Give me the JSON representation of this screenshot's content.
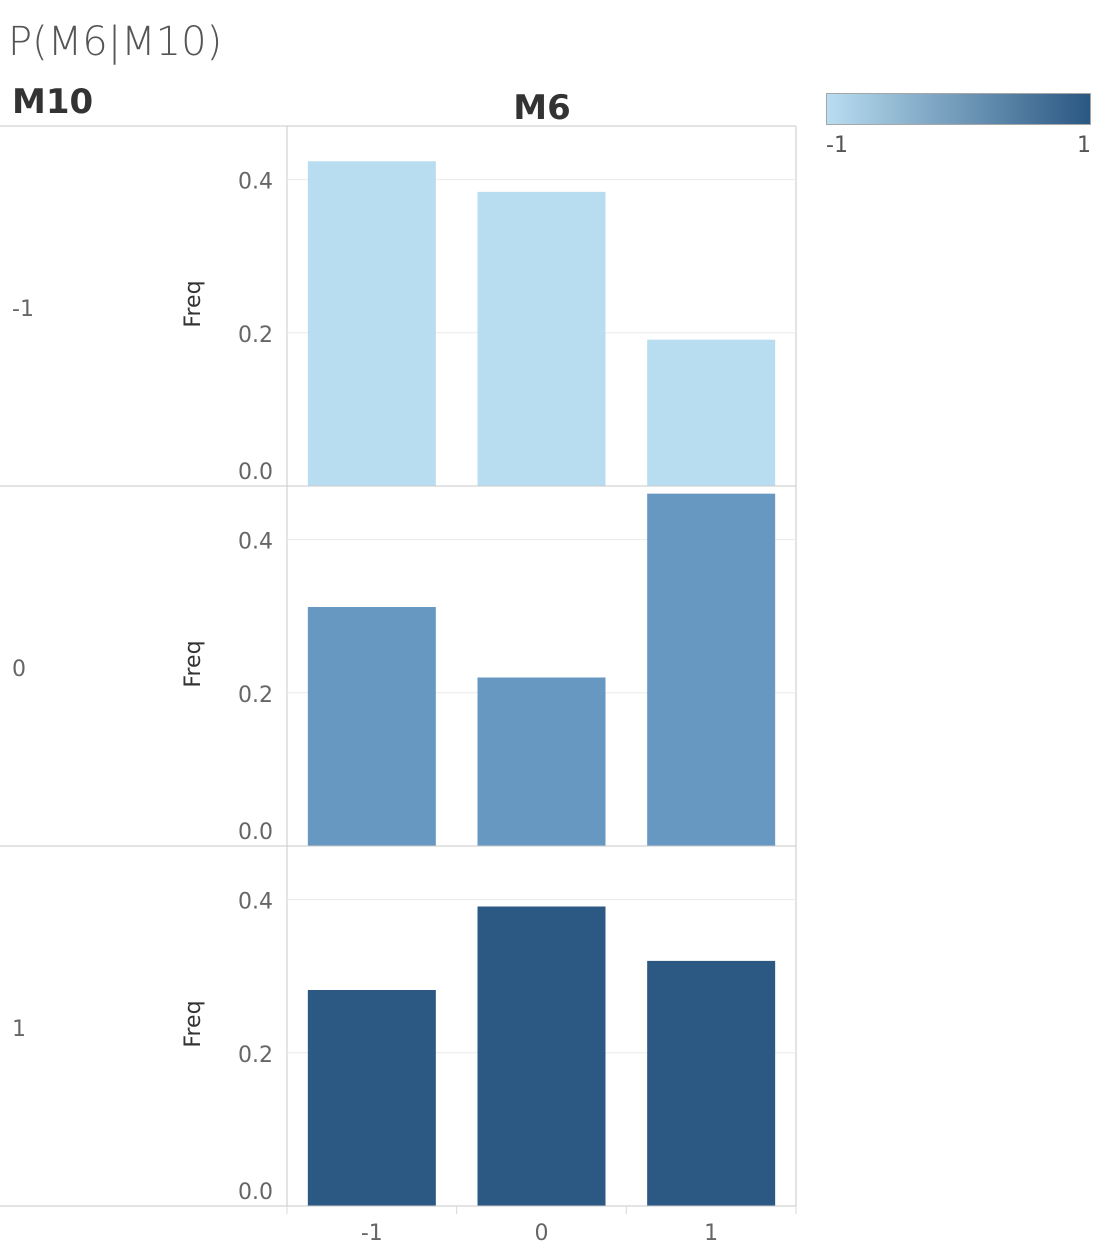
{
  "title": "P(M6|M10)",
  "row_header": "M10",
  "col_header": "M6",
  "legend": {
    "min_label": "-1",
    "max_label": "1",
    "color_low": "#b9ddf0",
    "color_high": "#2a5783"
  },
  "chart_data": {
    "type": "bar",
    "title": "P(M6|M10)",
    "row_field": "M10",
    "column_field": "M6",
    "categories": [
      "-1",
      "0",
      "1"
    ],
    "ylabel": "Freq",
    "ylim": [
      0,
      0.47
    ],
    "yticks": [
      "0.0",
      "0.2",
      "0.4"
    ],
    "ytick_values": [
      0,
      0.2,
      0.4
    ],
    "grid": true,
    "panels": [
      {
        "row": "-1",
        "color": "#b9ddf0",
        "values": [
          0.424,
          0.384,
          0.191
        ]
      },
      {
        "row": "0",
        "color": "#6798c1",
        "values": [
          0.312,
          0.22,
          0.46
        ]
      },
      {
        "row": "1",
        "color": "#2c5884",
        "values": [
          0.282,
          0.391,
          0.32
        ]
      }
    ]
  }
}
